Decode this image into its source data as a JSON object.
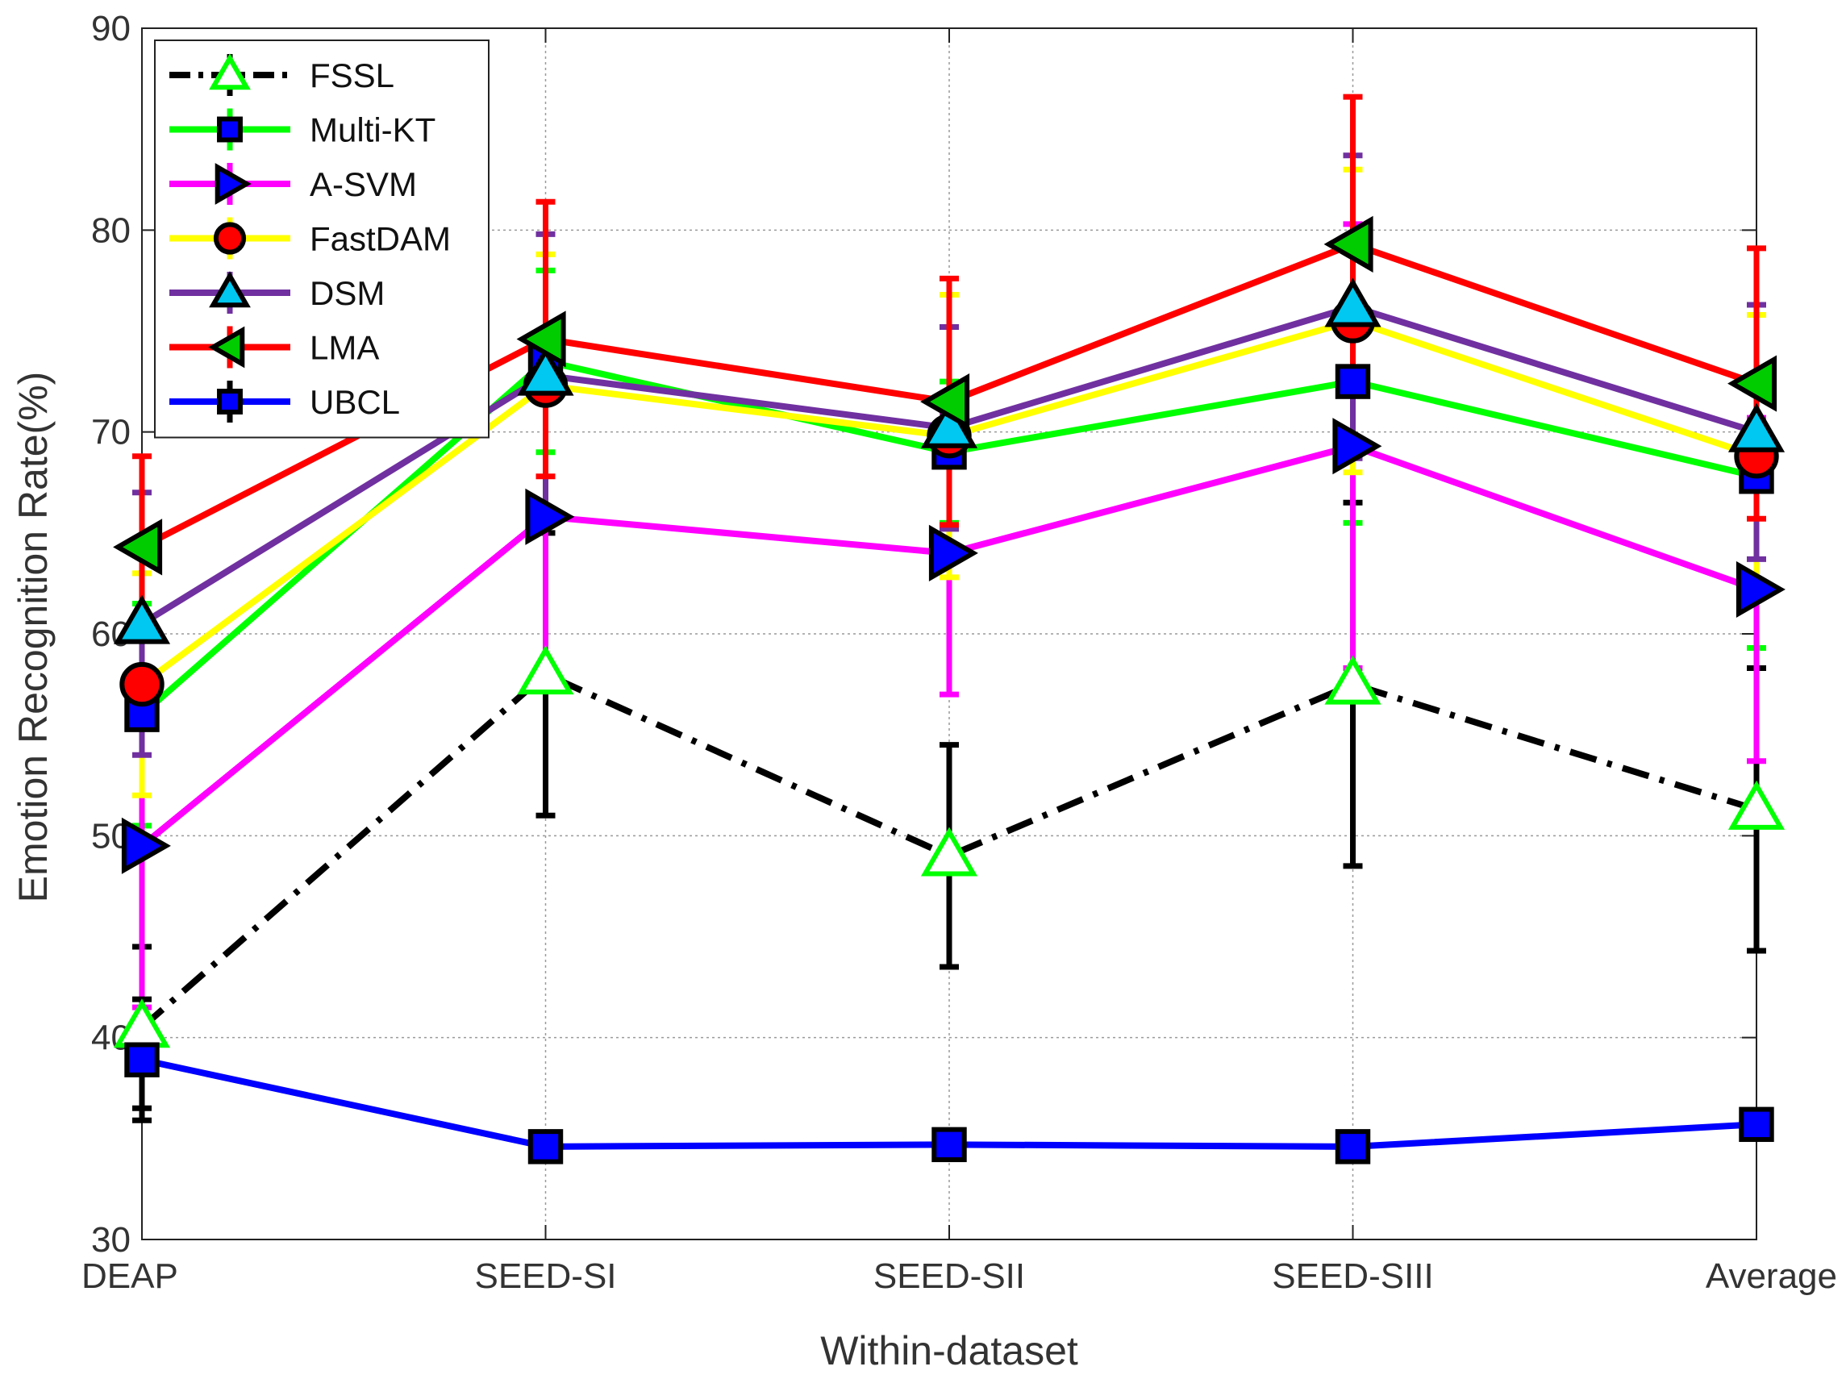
{
  "chart_data": {
    "type": "line",
    "title": "",
    "xlabel": "Within-dataset",
    "ylabel": "Emotion Recognition Rate(%)",
    "categories": [
      "DEAP",
      "SEED-SI",
      "SEED-SII",
      "SEED-SIII",
      "Average"
    ],
    "ylim": [
      30,
      90
    ],
    "yticks": [
      30,
      40,
      50,
      60,
      70,
      80,
      90
    ],
    "grid": true,
    "legend_position": "top-left",
    "series": [
      {
        "name": "FSSL",
        "values": [
          40.5,
          58.0,
          49.0,
          57.5,
          51.3
        ],
        "errors": [
          4.0,
          7.0,
          5.5,
          9.0,
          7.0
        ],
        "line_color": "#000000",
        "dash": "dashdot",
        "marker": "triangle-up",
        "marker_fill": "#ffffff",
        "marker_edge": "#00ff00",
        "err_color": "#000000"
      },
      {
        "name": "Multi-KT",
        "values": [
          56.0,
          73.5,
          69.0,
          72.5,
          67.8
        ],
        "errors": [
          5.5,
          4.5,
          3.5,
          7.0,
          8.5
        ],
        "line_color": "#00ff00",
        "dash": "solid",
        "marker": "square",
        "marker_fill": "#0000ff",
        "marker_edge": "#000000",
        "err_color": "#00ff00"
      },
      {
        "name": "A-SVM",
        "values": [
          49.5,
          65.8,
          64.0,
          69.3,
          62.2
        ],
        "errors": [
          8.0,
          7.5,
          7.0,
          11.0,
          8.5
        ],
        "line_color": "#ff00ff",
        "dash": "solid",
        "marker": "triangle-right",
        "marker_fill": "#0000ff",
        "marker_edge": "#000000",
        "err_color": "#ff00ff"
      },
      {
        "name": "FastDAM",
        "values": [
          57.5,
          72.3,
          69.8,
          75.5,
          68.8
        ],
        "errors": [
          5.5,
          6.5,
          7.0,
          7.5,
          7.0
        ],
        "line_color": "#ffff00",
        "dash": "solid",
        "marker": "circle",
        "marker_fill": "#ff0000",
        "marker_edge": "#000000",
        "err_color": "#ffff00"
      },
      {
        "name": "DSM",
        "values": [
          60.5,
          72.8,
          70.2,
          76.2,
          70.0
        ],
        "errors": [
          6.5,
          7.0,
          5.0,
          7.5,
          6.3
        ],
        "line_color": "#7030a0",
        "dash": "solid",
        "marker": "triangle-up",
        "marker_fill": "#00c8f0",
        "marker_edge": "#000000",
        "err_color": "#7030a0"
      },
      {
        "name": "LMA",
        "values": [
          64.3,
          74.6,
          71.5,
          79.3,
          72.4
        ],
        "errors": [
          4.5,
          6.8,
          6.1,
          7.3,
          6.7
        ],
        "line_color": "#ff0000",
        "dash": "solid",
        "marker": "triangle-left",
        "marker_fill": "#00cc00",
        "marker_edge": "#000000",
        "err_color": "#ff0000"
      },
      {
        "name": "UBCL",
        "values": [
          38.9,
          34.6,
          34.7,
          34.6,
          35.7
        ],
        "errors": [
          3.0,
          0.3,
          0.3,
          0.3,
          0.3
        ],
        "line_color": "#0000ff",
        "dash": "solid",
        "marker": "square",
        "marker_fill": "#0000ff",
        "marker_edge": "#000000",
        "err_color": "#000000"
      }
    ]
  }
}
